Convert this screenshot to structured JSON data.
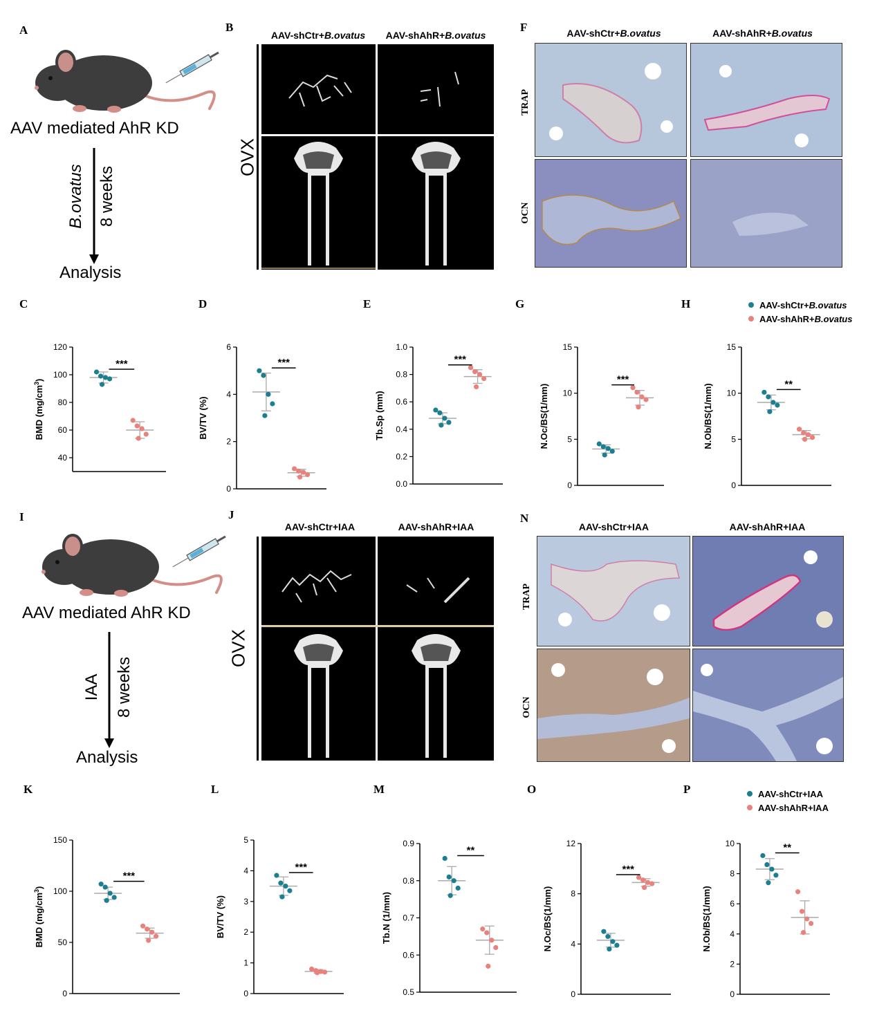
{
  "colors": {
    "ctr": "#1b7f8f",
    "ahr": "#e9827c"
  },
  "top": {
    "panel_labels": {
      "A": "A",
      "B": "B",
      "F": "F"
    },
    "induction_text": "AAV mediated AhR KD",
    "treatment_text": "B.ovatus",
    "duration_text": "8 weeks",
    "analysis_text": "Analysis",
    "group_ctr": "AAV-shCtr+",
    "group_ahr": "AAV-shAhR+",
    "group_suffix": "B.ovatus",
    "ovx_label": "OVX",
    "stain_trap": "TRAP",
    "stain_ocn": "OCN"
  },
  "bottom": {
    "panel_labels": {
      "I": "I",
      "J": "J",
      "N": "N"
    },
    "induction_text": "AAV mediated AhR KD",
    "treatment_text": "IAA",
    "duration_text": "8 weeks",
    "analysis_text": "Analysis",
    "group_ctr": "AAV-shCtr+IAA",
    "group_ahr": "AAV-shAhR+IAA",
    "ovx_label": "OVX",
    "stain_trap": "TRAP",
    "stain_ocn": "OCN"
  },
  "legend_top": {
    "ctr_prefix": "AAV-shCtr+",
    "ahr_prefix": "AAV-shAhR+",
    "suffix": "B.ovatus"
  },
  "legend_bottom": {
    "ctr": "AAV-shCtr+IAA",
    "ahr": "AAV-shAhR+IAA"
  },
  "chart_data": [
    {
      "panel": "C",
      "type": "scatter",
      "ylabel": "BMD (mg/cm",
      "ylabel_sup": "3",
      "ylabel_end": ")",
      "ylim": [
        30,
        120
      ],
      "yticks": [
        40,
        60,
        80,
        100,
        120
      ],
      "sig": "***",
      "series": [
        {
          "name": "AAV-shCtr+B.ovatus",
          "values": [
            102,
            99,
            98,
            97,
            93
          ],
          "mean": 98,
          "sd": 4
        },
        {
          "name": "AAV-shAhR+B.ovatus",
          "values": [
            67,
            63,
            61,
            57,
            54
          ],
          "mean": 60,
          "sd": 6
        }
      ]
    },
    {
      "panel": "D",
      "type": "scatter",
      "ylabel": "BV/TV (%)",
      "ylim": [
        0,
        6
      ],
      "yticks": [
        0,
        2,
        4,
        6
      ],
      "sig": "***",
      "series": [
        {
          "name": "AAV-shCtr+B.ovatus",
          "values": [
            5.0,
            4.8,
            4.0,
            3.6,
            3.1
          ],
          "mean": 4.1,
          "sd": 0.8
        },
        {
          "name": "AAV-shAhR+B.ovatus",
          "values": [
            0.85,
            0.75,
            0.7,
            0.6,
            0.5
          ],
          "mean": 0.68,
          "sd": 0.15
        }
      ]
    },
    {
      "panel": "E",
      "type": "scatter",
      "ylabel": "Tb.Sp (mm)",
      "ylim": [
        0,
        1.0
      ],
      "yticks": [
        0.0,
        0.2,
        0.4,
        0.6,
        0.8,
        1.0
      ],
      "sig": "***",
      "series": [
        {
          "name": "AAV-shCtr+B.ovatus",
          "values": [
            0.54,
            0.52,
            0.48,
            0.45,
            0.43
          ],
          "mean": 0.48,
          "sd": 0.04
        },
        {
          "name": "AAV-shAhR+B.ovatus",
          "values": [
            0.85,
            0.82,
            0.8,
            0.77,
            0.71
          ],
          "mean": 0.785,
          "sd": 0.05
        }
      ]
    },
    {
      "panel": "G",
      "type": "scatter",
      "ylabel": "N.Oc/BS(1/mm)",
      "ylim": [
        0,
        15
      ],
      "yticks": [
        0,
        5,
        10,
        15
      ],
      "sig": "***",
      "series": [
        {
          "name": "AAV-shCtr+B.ovatus",
          "values": [
            4.5,
            4.2,
            4.0,
            3.7,
            3.3
          ],
          "mean": 3.95,
          "sd": 0.45
        },
        {
          "name": "AAV-shAhR+B.ovatus",
          "values": [
            10.6,
            10.1,
            9.6,
            9.3,
            8.5
          ],
          "mean": 9.5,
          "sd": 0.8
        }
      ]
    },
    {
      "panel": "H",
      "type": "scatter",
      "ylabel": "N.Ob/BS(1/mm)",
      "ylim": [
        0,
        15
      ],
      "yticks": [
        0,
        5,
        10,
        15
      ],
      "sig": "**",
      "series": [
        {
          "name": "AAV-shCtr+B.ovatus",
          "values": [
            10.1,
            9.6,
            9.0,
            8.7,
            8.0
          ],
          "mean": 9.0,
          "sd": 0.8
        },
        {
          "name": "AAV-shAhR+B.ovatus",
          "values": [
            6.1,
            5.7,
            5.5,
            5.2,
            5.0
          ],
          "mean": 5.5,
          "sd": 0.45
        }
      ]
    },
    {
      "panel": "K",
      "type": "scatter",
      "ylabel": "BMD (mg/cm",
      "ylabel_sup": "3",
      "ylabel_end": ")",
      "ylim": [
        0,
        150
      ],
      "yticks": [
        0,
        50,
        100,
        150
      ],
      "sig": "***",
      "series": [
        {
          "name": "AAV-shCtr+IAA",
          "values": [
            107,
            104,
            98,
            94,
            91
          ],
          "mean": 98,
          "sd": 6
        },
        {
          "name": "AAV-shAhR+IAA",
          "values": [
            66,
            63,
            60,
            56,
            52
          ],
          "mean": 59,
          "sd": 5
        }
      ]
    },
    {
      "panel": "L",
      "type": "scatter",
      "ylabel": "BV/TV (%)",
      "ylim": [
        0,
        5
      ],
      "yticks": [
        0,
        1,
        2,
        3,
        4,
        5
      ],
      "sig": "***",
      "series": [
        {
          "name": "AAV-shCtr+IAA",
          "values": [
            3.85,
            3.6,
            3.5,
            3.35,
            3.15
          ],
          "mean": 3.5,
          "sd": 0.3
        },
        {
          "name": "AAV-shAhR+IAA",
          "values": [
            0.8,
            0.75,
            0.72,
            0.7,
            0.68
          ],
          "mean": 0.72,
          "sd": 0.06
        }
      ]
    },
    {
      "panel": "M",
      "type": "scatter",
      "ylabel": "Tb.N (1/mm)",
      "ylim": [
        0.5,
        0.9
      ],
      "yticks": [
        0.5,
        0.6,
        0.7,
        0.8,
        0.9
      ],
      "sig": "**",
      "series": [
        {
          "name": "AAV-shCtr+IAA",
          "values": [
            0.86,
            0.81,
            0.8,
            0.78,
            0.76
          ],
          "mean": 0.8,
          "sd": 0.038
        },
        {
          "name": "AAV-shAhR+IAA",
          "values": [
            0.67,
            0.66,
            0.64,
            0.62,
            0.57
          ],
          "mean": 0.64,
          "sd": 0.038
        }
      ]
    },
    {
      "panel": "O",
      "type": "scatter",
      "ylabel": "N.Oc/BS(1/mm)",
      "ylim": [
        0,
        12
      ],
      "yticks": [
        0,
        4,
        8,
        12
      ],
      "sig": "***",
      "series": [
        {
          "name": "AAV-shCtr+IAA",
          "values": [
            5.0,
            4.6,
            4.2,
            3.9,
            3.6
          ],
          "mean": 4.3,
          "sd": 0.55
        },
        {
          "name": "AAV-shAhR+IAA",
          "values": [
            9.3,
            9.1,
            8.9,
            8.8,
            8.5
          ],
          "mean": 8.9,
          "sd": 0.3
        }
      ]
    },
    {
      "panel": "P",
      "type": "scatter",
      "ylabel": "N.Ob/BS(1/mm)",
      "ylim": [
        0,
        10
      ],
      "yticks": [
        0,
        2,
        4,
        6,
        8,
        10
      ],
      "sig": "**",
      "series": [
        {
          "name": "AAV-shCtr+IAA",
          "values": [
            9.2,
            8.6,
            8.3,
            7.9,
            7.4
          ],
          "mean": 8.3,
          "sd": 0.7
        },
        {
          "name": "AAV-shAhR+IAA",
          "values": [
            6.8,
            5.5,
            5.0,
            4.7,
            4.1
          ],
          "mean": 5.1,
          "sd": 1.1
        }
      ]
    }
  ]
}
